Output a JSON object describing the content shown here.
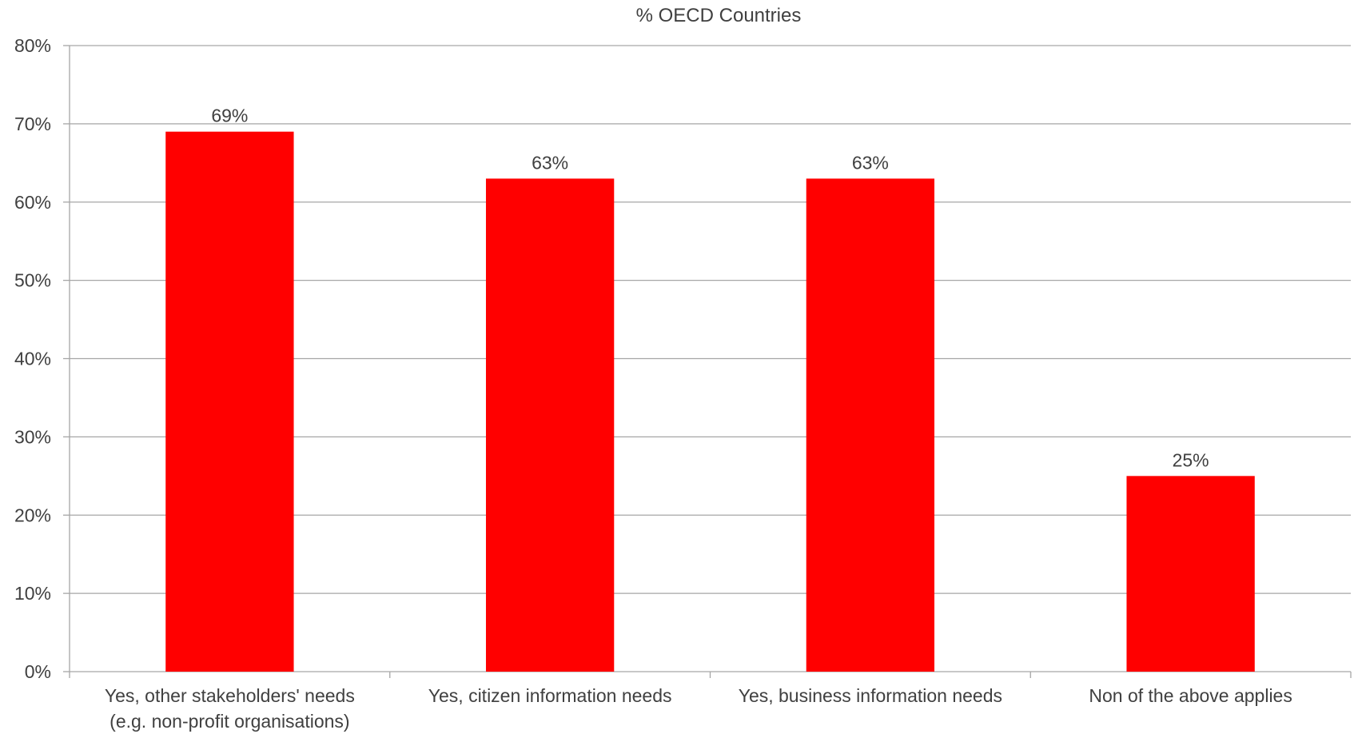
{
  "chart_data": {
    "type": "bar",
    "title": "% OECD Countries",
    "xlabel": "",
    "ylabel": "",
    "categories": [
      [
        "Yes, other stakeholders' needs",
        "(e.g. non-profit organisations)"
      ],
      [
        "Yes, citizen information needs"
      ],
      [
        "Yes, business information needs"
      ],
      [
        "Non of the above applies"
      ]
    ],
    "values": [
      69,
      63,
      63,
      25
    ],
    "value_labels": [
      "69%",
      "63%",
      "63%",
      "25%"
    ],
    "ylim": [
      0,
      80
    ],
    "yticks": [
      0,
      10,
      20,
      30,
      40,
      50,
      60,
      70,
      80
    ],
    "ytick_labels": [
      "0%",
      "10%",
      "20%",
      "30%",
      "40%",
      "50%",
      "60%",
      "70%",
      "80%"
    ],
    "grid": true,
    "legend": "none",
    "colors": {
      "bar": "#ff0000",
      "grid": "#a6a6a6",
      "axis": "#a6a6a6",
      "text": "#404040"
    }
  }
}
